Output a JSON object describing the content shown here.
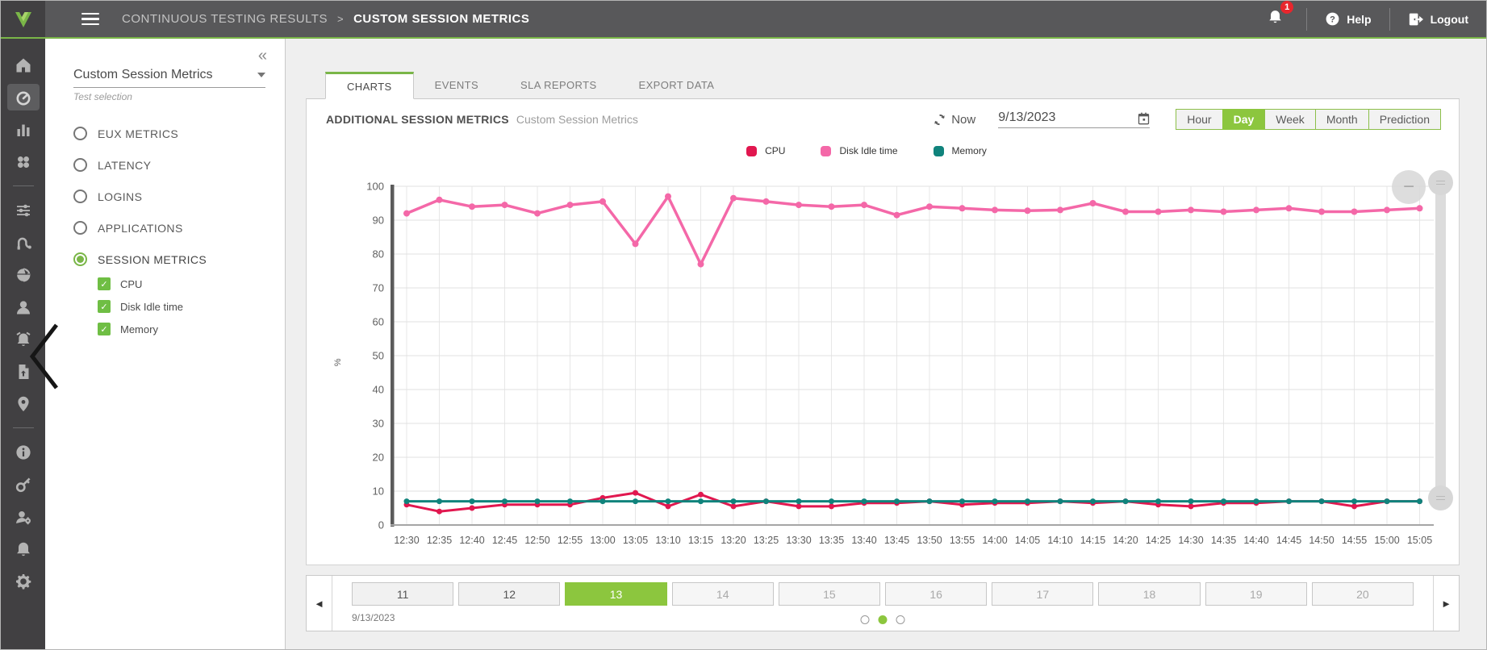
{
  "topbar": {
    "breadcrumb_root": "CONTINUOUS TESTING RESULTS",
    "breadcrumb_sep": ">",
    "breadcrumb_current": "CUSTOM SESSION METRICS",
    "notification_count": "1",
    "help_label": "Help",
    "logout_label": "Logout"
  },
  "sidebar_icons": [
    "home",
    "gauge",
    "bar-chart",
    "apps",
    "divider",
    "sliders",
    "cable",
    "globe",
    "user",
    "alarm",
    "document-export",
    "location-pin",
    "divider",
    "info",
    "key",
    "user-settings",
    "bell",
    "gear"
  ],
  "sidebar_selected": "gauge",
  "left_panel": {
    "collapse_icon": "«",
    "test_dropdown_value": "Custom Session Metrics",
    "test_dropdown_label": "Test selection",
    "radio_options": [
      {
        "label": "EUX METRICS",
        "selected": false
      },
      {
        "label": "LATENCY",
        "selected": false
      },
      {
        "label": "LOGINS",
        "selected": false
      },
      {
        "label": "APPLICATIONS",
        "selected": false
      },
      {
        "label": "SESSION METRICS",
        "selected": true
      }
    ],
    "checkboxes": [
      {
        "label": "CPU",
        "checked": true
      },
      {
        "label": "Disk Idle time",
        "checked": true
      },
      {
        "label": "Memory",
        "checked": true
      }
    ]
  },
  "tabs": [
    {
      "label": "CHARTS",
      "active": true
    },
    {
      "label": "EVENTS",
      "active": false
    },
    {
      "label": "SLA REPORTS",
      "active": false
    },
    {
      "label": "EXPORT DATA",
      "active": false
    }
  ],
  "panel_header": {
    "title": "ADDITIONAL SESSION METRICS",
    "subtitle": "Custom Session Metrics",
    "now_label": "Now",
    "date_value": "9/13/2023",
    "range_buttons": [
      {
        "label": "Hour",
        "active": false
      },
      {
        "label": "Day",
        "active": true
      },
      {
        "label": "Week",
        "active": false
      },
      {
        "label": "Month",
        "active": false
      },
      {
        "label": "Prediction",
        "active": false
      }
    ]
  },
  "chart_data": {
    "type": "line",
    "ylabel": "%",
    "ylim": [
      0,
      100
    ],
    "ytick_step": 10,
    "grid": true,
    "legend_position": "top-center",
    "x": [
      "12:30",
      "12:35",
      "12:40",
      "12:45",
      "12:50",
      "12:55",
      "13:00",
      "13:05",
      "13:10",
      "13:15",
      "13:20",
      "13:25",
      "13:30",
      "13:35",
      "13:40",
      "13:45",
      "13:50",
      "13:55",
      "14:00",
      "14:05",
      "14:10",
      "14:15",
      "14:20",
      "14:25",
      "14:30",
      "14:35",
      "14:40",
      "14:45",
      "14:50",
      "14:55",
      "15:00",
      "15:05"
    ],
    "series": [
      {
        "name": "CPU",
        "color": "#e1174f",
        "values": [
          6,
          4,
          5,
          6,
          6,
          6,
          8,
          9.5,
          5.5,
          9,
          5.5,
          7,
          5.5,
          5.5,
          6.5,
          6.5,
          7,
          6,
          6.5,
          6.5,
          7,
          6.5,
          7,
          6,
          5.5,
          6.5,
          6.5,
          7,
          7,
          5.5,
          7,
          7
        ]
      },
      {
        "name": "Disk Idle time",
        "color": "#f468a8",
        "values": [
          92,
          96,
          94,
          94.5,
          92,
          94.5,
          95.5,
          83,
          97,
          77,
          96.5,
          95.5,
          94.5,
          94,
          94.5,
          91.5,
          94,
          93.5,
          93,
          92.8,
          93,
          95,
          92.5,
          92.5,
          93,
          92.5,
          93,
          93.5,
          92.5,
          92.5,
          93,
          93.5
        ]
      },
      {
        "name": "Memory",
        "color": "#10837c",
        "values": [
          7,
          7,
          7,
          7,
          7,
          7,
          7,
          7,
          7,
          7,
          7,
          7,
          7,
          7,
          7,
          7,
          7,
          7,
          7,
          7,
          7,
          7,
          7,
          7,
          7,
          7,
          7,
          7,
          7,
          7,
          7,
          7
        ]
      }
    ]
  },
  "chart_controls": {
    "zoom_out_label": "−"
  },
  "pagination": {
    "arrow_left": "◄",
    "arrow_right": "►",
    "days": [
      {
        "label": "11",
        "state": "past"
      },
      {
        "label": "12",
        "state": "past"
      },
      {
        "label": "13",
        "state": "selected"
      },
      {
        "label": "14",
        "state": "future"
      },
      {
        "label": "15",
        "state": "future"
      },
      {
        "label": "16",
        "state": "future"
      },
      {
        "label": "17",
        "state": "future"
      },
      {
        "label": "18",
        "state": "future"
      },
      {
        "label": "19",
        "state": "future"
      },
      {
        "label": "20",
        "state": "future"
      }
    ],
    "date_label": "9/13/2023",
    "dots": [
      "outline",
      "filled",
      "outline"
    ]
  },
  "colors": {
    "accent_green": "#7ab648",
    "selected_green": "#8cc63e",
    "topbar_gray": "#58585a",
    "rail_gray": "#414042",
    "cpu": "#e1174f",
    "disk_idle": "#f468a8",
    "memory": "#10837c",
    "badge_red": "#e8262d"
  }
}
